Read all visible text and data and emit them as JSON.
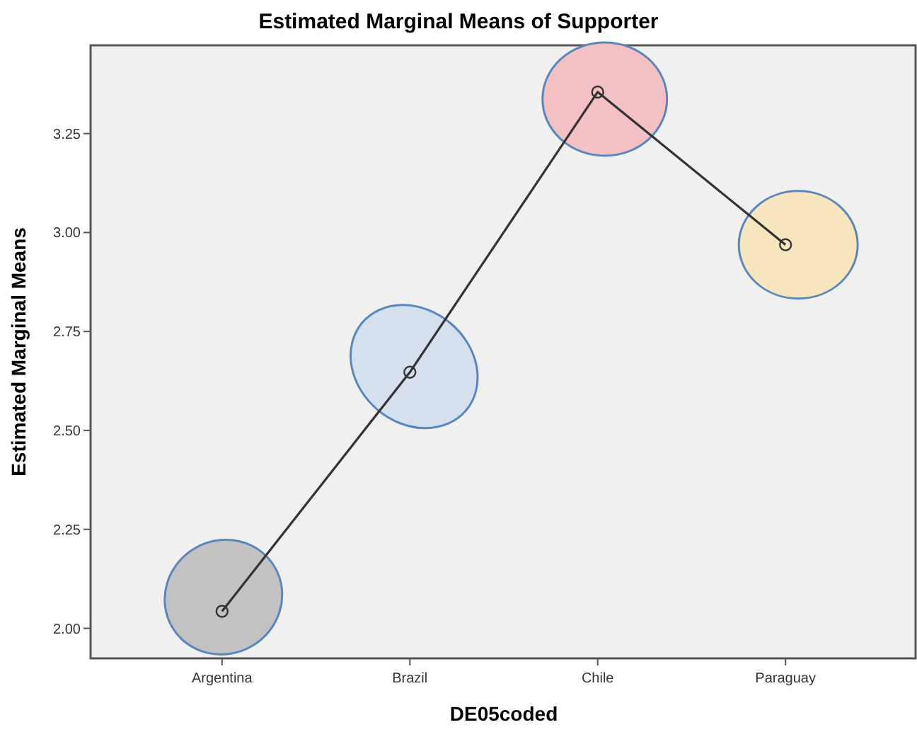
{
  "chart_data": {
    "type": "line",
    "title": "Estimated Marginal Means of Supporter",
    "xlabel": "DE05coded",
    "ylabel": "Estimated Marginal Means",
    "categories": [
      "Argentina",
      "Brazil",
      "Chile",
      "Paraguay"
    ],
    "values": [
      2.043,
      2.647,
      3.355,
      2.969
    ],
    "color": "#333333",
    "marker": "circle",
    "line_style": "solid",
    "grid": false,
    "ylim": [
      1.924,
      3.473
    ],
    "yticks": [
      {
        "value": 2,
        "label": "2.00"
      },
      {
        "value": 2.25,
        "label": "2.25"
      },
      {
        "value": 2.5,
        "label": "2.50"
      },
      {
        "value": 2.75,
        "label": "2.75"
      },
      {
        "value": 3,
        "label": "3.00"
      },
      {
        "value": 3.25,
        "label": "3.25"
      }
    ]
  }
}
